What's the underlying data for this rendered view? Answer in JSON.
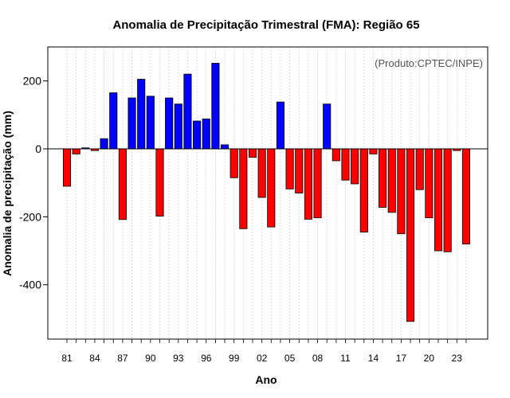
{
  "chart_data": {
    "type": "bar",
    "title": "Anomalia de Precipitação Trimestral (FMA): Região 65",
    "xlabel": "Ano",
    "ylabel": "Anomalia de precipitação (mm)",
    "credit": "(Produto:CPTEC/INPE)",
    "ylim": [
      -560,
      300
    ],
    "yticks": [
      -400,
      -200,
      0,
      200
    ],
    "positive_color": "#0000ff",
    "negative_color": "#ff0000",
    "grid": true,
    "categories": [
      "1981",
      "1982",
      "1983",
      "1984",
      "1985",
      "1986",
      "1987",
      "1988",
      "1989",
      "1990",
      "1991",
      "1992",
      "1993",
      "1994",
      "1995",
      "1996",
      "1997",
      "1998",
      "1999",
      "2000",
      "2001",
      "2002",
      "2003",
      "2004",
      "2005",
      "2006",
      "2007",
      "2008",
      "2009",
      "2010",
      "2011",
      "2012",
      "2013",
      "2014",
      "2015",
      "2016",
      "2017",
      "2018",
      "2019",
      "2020",
      "2021",
      "2022",
      "2023",
      "2024"
    ],
    "values": [
      -110,
      -15,
      3,
      -5,
      30,
      165,
      -208,
      150,
      205,
      155,
      -198,
      150,
      132,
      220,
      82,
      88,
      252,
      12,
      -85,
      -235,
      -25,
      -143,
      -230,
      138,
      -118,
      -130,
      -207,
      -203,
      132,
      -35,
      -92,
      -103,
      -245,
      -15,
      -172,
      -187,
      -250,
      -508,
      -120,
      -203,
      -300,
      -303,
      -5,
      -280
    ],
    "xtick_labels": [
      "81",
      "84",
      "87",
      "90",
      "93",
      "96",
      "99",
      "02",
      "05",
      "08",
      "11",
      "14",
      "17",
      "20",
      "23"
    ]
  }
}
